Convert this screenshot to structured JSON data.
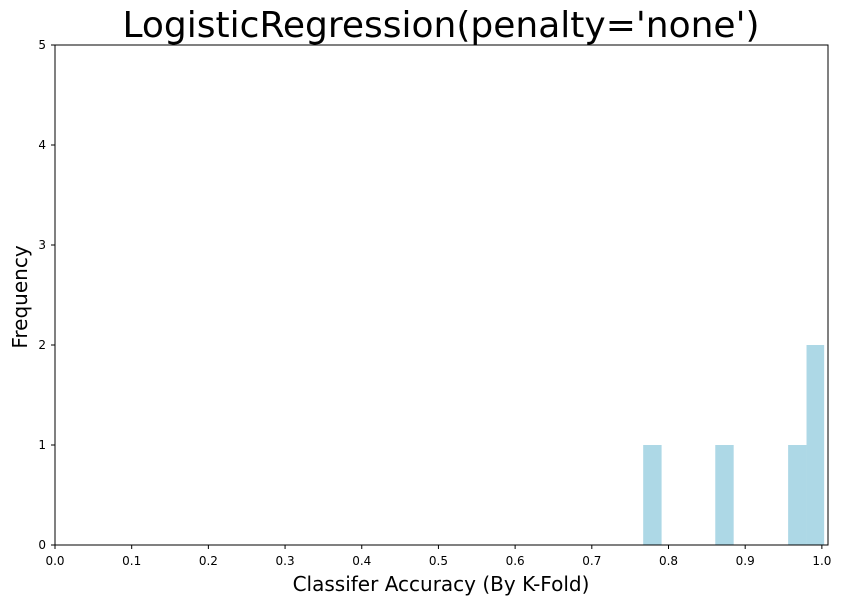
{
  "chart_data": {
    "type": "bar",
    "title": "LogisticRegression(penalty='none')",
    "xlabel": "Classifer Accuracy (By K-Fold)",
    "ylabel": "Frequency",
    "xlim": [
      0.0,
      1.008
    ],
    "ylim": [
      0,
      5
    ],
    "x_ticks": [
      0.0,
      0.1,
      0.2,
      0.3,
      0.4,
      0.5,
      0.6,
      0.7,
      0.8,
      0.9,
      1.0
    ],
    "x_tick_labels": [
      "0.0",
      "0.1",
      "0.2",
      "0.3",
      "0.4",
      "0.5",
      "0.6",
      "0.7",
      "0.8",
      "0.9",
      "1.0"
    ],
    "y_ticks": [
      0,
      1,
      2,
      3,
      4,
      5
    ],
    "y_tick_labels": [
      "0",
      "1",
      "2",
      "3",
      "4",
      "5"
    ],
    "grid": false,
    "bar_color": "#add8e6",
    "bins": [
      {
        "x0": 0.767,
        "x1": 0.791,
        "count": 1
      },
      {
        "x0": 0.861,
        "x1": 0.885,
        "count": 1
      },
      {
        "x0": 0.956,
        "x1": 0.98,
        "count": 1
      },
      {
        "x0": 0.98,
        "x1": 1.003,
        "count": 2
      }
    ]
  }
}
